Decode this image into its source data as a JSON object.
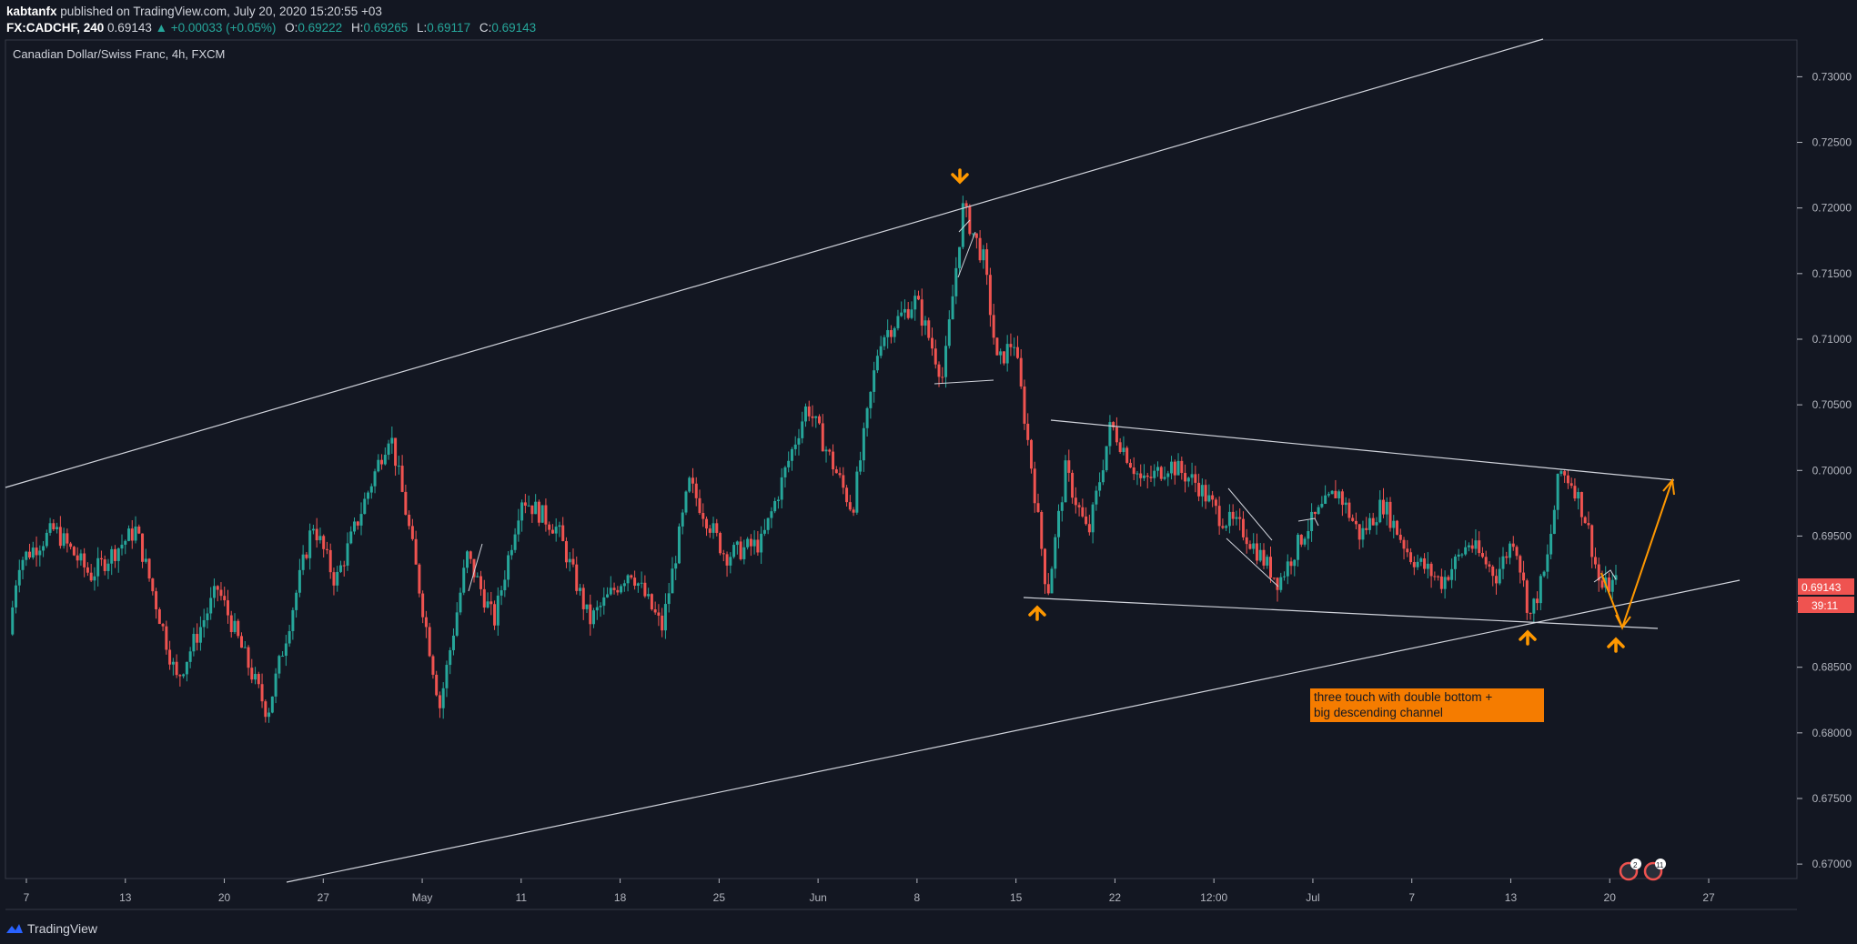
{
  "header": {
    "author": "kabtanfx",
    "published_text": "published on TradingView.com, July 20, 2020 15:20:55 +03",
    "symbol": "FX:CADCHF, 240",
    "last": "0.69143",
    "change": "▲ +0.00033 (+0.05%)",
    "open_label": "O:",
    "open": "0.69222",
    "high_label": "H:",
    "high": "0.69265",
    "low_label": "L:",
    "low": "0.69117",
    "close_label": "C:",
    "close": "0.69143"
  },
  "chart_title": "Canadian Dollar/Swiss Franc, 4h, FXCM",
  "annotation": {
    "line1": "three touch with double bottom +",
    "line2": "big descending channel"
  },
  "price_tag": {
    "value": "0.69143",
    "countdown": "39:11"
  },
  "events": [
    {
      "badge": "2"
    },
    {
      "badge": "11"
    }
  ],
  "footer": {
    "brand": "TradingView"
  },
  "colors": {
    "background": "#131722",
    "up": "#26a69a",
    "down": "#ef5350",
    "accent": "#ff9800",
    "line": "#d1d4dc",
    "text": "#b2b5be"
  },
  "chart_data": {
    "type": "candlestick",
    "title": "Canadian Dollar/Swiss Franc, 4h, FXCM",
    "instrument": "FX:CADCHF",
    "timeframe": "240",
    "y_ticks": [
      0.73,
      0.725,
      0.72,
      0.715,
      0.71,
      0.705,
      0.7,
      0.695,
      0.69,
      0.685,
      0.68,
      0.675,
      0.67
    ],
    "ylim": [
      0.6689,
      0.7328
    ],
    "x_ticks": [
      "7",
      "13",
      "20",
      "27",
      "May",
      "11",
      "18",
      "25",
      "Jun",
      "8",
      "15",
      "22",
      "12:00",
      "Jul",
      "7",
      "13",
      "20",
      "27"
    ],
    "price_path": [
      {
        "x": 0,
        "y": 0.6875
      },
      {
        "x": 10,
        "y": 0.693
      },
      {
        "x": 50,
        "y": 0.6955
      },
      {
        "x": 90,
        "y": 0.692
      },
      {
        "x": 140,
        "y": 0.6955
      },
      {
        "x": 185,
        "y": 0.684
      },
      {
        "x": 230,
        "y": 0.691
      },
      {
        "x": 285,
        "y": 0.6815
      },
      {
        "x": 335,
        "y": 0.696
      },
      {
        "x": 360,
        "y": 0.6915
      },
      {
        "x": 420,
        "y": 0.703
      },
      {
        "x": 440,
        "y": 0.696
      },
      {
        "x": 475,
        "y": 0.682
      },
      {
        "x": 505,
        "y": 0.6935
      },
      {
        "x": 535,
        "y": 0.6885
      },
      {
        "x": 565,
        "y": 0.698
      },
      {
        "x": 605,
        "y": 0.6955
      },
      {
        "x": 640,
        "y": 0.6885
      },
      {
        "x": 685,
        "y": 0.6925
      },
      {
        "x": 720,
        "y": 0.688
      },
      {
        "x": 750,
        "y": 0.699
      },
      {
        "x": 790,
        "y": 0.6935
      },
      {
        "x": 830,
        "y": 0.6945
      },
      {
        "x": 880,
        "y": 0.705
      },
      {
        "x": 930,
        "y": 0.697
      },
      {
        "x": 960,
        "y": 0.71
      },
      {
        "x": 1000,
        "y": 0.713
      },
      {
        "x": 1030,
        "y": 0.707
      },
      {
        "x": 1052,
        "y": 0.72
      },
      {
        "x": 1075,
        "y": 0.716
      },
      {
        "x": 1090,
        "y": 0.708
      },
      {
        "x": 1108,
        "y": 0.71
      },
      {
        "x": 1128,
        "y": 0.7
      },
      {
        "x": 1145,
        "y": 0.6905
      },
      {
        "x": 1165,
        "y": 0.7
      },
      {
        "x": 1190,
        "y": 0.695
      },
      {
        "x": 1215,
        "y": 0.7035
      },
      {
        "x": 1250,
        "y": 0.699
      },
      {
        "x": 1280,
        "y": 0.7005
      },
      {
        "x": 1310,
        "y": 0.699
      },
      {
        "x": 1335,
        "y": 0.6965
      },
      {
        "x": 1360,
        "y": 0.6955
      },
      {
        "x": 1400,
        "y": 0.6915
      },
      {
        "x": 1430,
        "y": 0.6955
      },
      {
        "x": 1465,
        "y": 0.6985
      },
      {
        "x": 1490,
        "y": 0.695
      },
      {
        "x": 1515,
        "y": 0.6975
      },
      {
        "x": 1545,
        "y": 0.6935
      },
      {
        "x": 1580,
        "y": 0.6915
      },
      {
        "x": 1610,
        "y": 0.6945
      },
      {
        "x": 1640,
        "y": 0.692
      },
      {
        "x": 1660,
        "y": 0.695
      },
      {
        "x": 1677,
        "y": 0.6888
      },
      {
        "x": 1695,
        "y": 0.6925
      },
      {
        "x": 1710,
        "y": 0.7
      },
      {
        "x": 1725,
        "y": 0.699
      },
      {
        "x": 1740,
        "y": 0.696
      },
      {
        "x": 1755,
        "y": 0.691
      },
      {
        "x": 1772,
        "y": 0.69143
      }
    ]
  }
}
